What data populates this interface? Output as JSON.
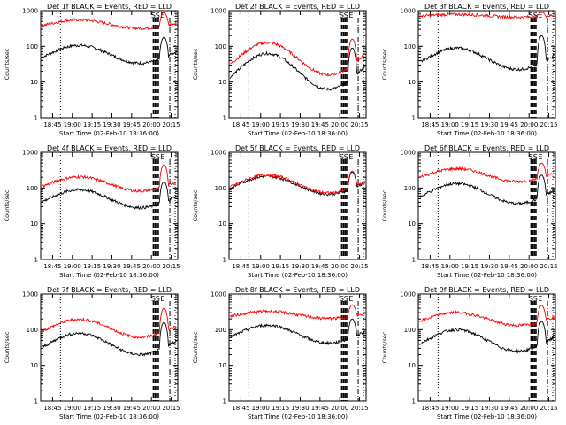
{
  "chart_data": [
    {
      "type": "line",
      "title": "Det 1f BLACK = Events, RED = LLD",
      "xlabel": "Start Time (02-Feb-10 18:36:00)",
      "ylabel": "Counts/sec",
      "x_ticks": [
        "18:45",
        "19:00",
        "19:15",
        "19:30",
        "19:45",
        "20:00",
        "20:15"
      ],
      "y_ticks": [
        "1",
        "10",
        "100",
        "1000"
      ],
      "ylim": [
        1,
        1000
      ],
      "y_scale": "log",
      "markers": [
        "S",
        "S",
        "E"
      ],
      "series": [
        {
          "color": "#000000",
          "base": 60,
          "amp": 0.25,
          "spike": 180
        },
        {
          "color": "#ff0000",
          "base": 420,
          "amp": 0.12,
          "spike": 900
        }
      ]
    },
    {
      "type": "line",
      "title": "Det 2f BLACK = Events, RED = LLD",
      "xlabel": "Start Time (02-Feb-10 18:36:00)",
      "ylabel": "Counts/sec",
      "x_ticks": [
        "18:45",
        "19:00",
        "19:15",
        "19:30",
        "19:45",
        "20:00",
        "20:15"
      ],
      "y_ticks": [
        "1",
        "10",
        "100",
        "1000"
      ],
      "ylim": [
        1,
        1000
      ],
      "y_scale": "log",
      "markers": [
        "S",
        "S",
        "E"
      ],
      "series": [
        {
          "color": "#000000",
          "base": 20,
          "amp": 0.5,
          "spike": 90
        },
        {
          "color": "#ff0000",
          "base": 45,
          "amp": 0.45,
          "spike": 160
        }
      ]
    },
    {
      "type": "line",
      "title": "Det 3f BLACK = Events, RED = LLD",
      "xlabel": "Start Time (02-Feb-10 18:36:00)",
      "ylabel": "Counts/sec",
      "x_ticks": [
        "18:45",
        "19:00",
        "19:15",
        "19:30",
        "19:45",
        "20:00",
        "20:15"
      ],
      "y_ticks": [
        "1",
        "10",
        "100",
        "1000"
      ],
      "ylim": [
        1,
        1000
      ],
      "y_scale": "log",
      "markers": [
        "S",
        "S",
        "E"
      ],
      "series": [
        {
          "color": "#000000",
          "base": 45,
          "amp": 0.3,
          "spike": 200
        },
        {
          "color": "#ff0000",
          "base": 720,
          "amp": 0.04,
          "spike": 900
        }
      ]
    },
    {
      "type": "line",
      "title": "Det 4f BLACK = Events, RED = LLD",
      "xlabel": "Start Time (02-Feb-10 18:36:00)",
      "ylabel": "Counts/sec",
      "x_ticks": [
        "18:45",
        "19:00",
        "19:15",
        "19:30",
        "19:45",
        "20:00",
        "20:15"
      ],
      "y_ticks": [
        "1",
        "10",
        "100",
        "1000"
      ],
      "ylim": [
        1,
        1000
      ],
      "y_scale": "log",
      "markers": [
        "S",
        "S",
        "E"
      ],
      "series": [
        {
          "color": "#000000",
          "base": 50,
          "amp": 0.25,
          "spike": 150
        },
        {
          "color": "#ff0000",
          "base": 130,
          "amp": 0.2,
          "spike": 450
        }
      ]
    },
    {
      "type": "line",
      "title": "Det 5f BLACK = Events, RED = LLD",
      "xlabel": "Start Time (02-Feb-10 18:36:00)",
      "ylabel": "Counts/sec",
      "x_ticks": [
        "18:45",
        "19:00",
        "19:15",
        "19:30",
        "19:45",
        "20:00",
        "20:15"
      ],
      "y_ticks": [
        "1",
        "10",
        "100",
        "1000"
      ],
      "ylim": [
        1,
        1000
      ],
      "y_scale": "log",
      "markers": [
        "S",
        "S",
        "E"
      ],
      "series": [
        {
          "color": "#000000",
          "base": 120,
          "amp": 0.25,
          "spike": 280
        },
        {
          "color": "#ff0000",
          "base": 130,
          "amp": 0.25,
          "spike": 300
        }
      ]
    },
    {
      "type": "line",
      "title": "Det 6f BLACK = Events, RED = LLD",
      "xlabel": "Start Time (02-Feb-10 18:36:00)",
      "ylabel": "Counts/sec",
      "x_ticks": [
        "18:45",
        "19:00",
        "19:15",
        "19:30",
        "19:45",
        "20:00",
        "20:15"
      ],
      "y_ticks": [
        "1",
        "10",
        "100",
        "1000"
      ],
      "ylim": [
        1,
        1000
      ],
      "y_scale": "log",
      "markers": [
        "S",
        "S",
        "E"
      ],
      "series": [
        {
          "color": "#000000",
          "base": 70,
          "amp": 0.28,
          "spike": 230
        },
        {
          "color": "#ff0000",
          "base": 230,
          "amp": 0.18,
          "spike": 500
        }
      ]
    },
    {
      "type": "line",
      "title": "Det 7f BLACK = Events, RED = LLD",
      "xlabel": "Start Time (02-Feb-10 18:36:00)",
      "ylabel": "Counts/sec",
      "x_ticks": [
        "18:45",
        "19:00",
        "19:15",
        "19:30",
        "19:45",
        "20:00",
        "20:15"
      ],
      "y_ticks": [
        "1",
        "10",
        "100",
        "1000"
      ],
      "ylim": [
        1,
        1000
      ],
      "y_scale": "log",
      "markers": [
        "S",
        "S",
        "E"
      ],
      "series": [
        {
          "color": "#000000",
          "base": 40,
          "amp": 0.3,
          "spike": 160
        },
        {
          "color": "#ff0000",
          "base": 110,
          "amp": 0.25,
          "spike": 400
        }
      ]
    },
    {
      "type": "line",
      "title": "Det 8f BLACK = Events, RED = LLD",
      "xlabel": "Start Time (02-Feb-10 18:36:00)",
      "ylabel": "Counts/sec",
      "x_ticks": [
        "18:45",
        "19:00",
        "19:15",
        "19:30",
        "19:45",
        "20:00",
        "20:15"
      ],
      "y_ticks": [
        "1",
        "10",
        "100",
        "1000"
      ],
      "ylim": [
        1,
        1000
      ],
      "y_scale": "log",
      "markers": [
        "S",
        "S",
        "E"
      ],
      "series": [
        {
          "color": "#000000",
          "base": 75,
          "amp": 0.25,
          "spike": 200
        },
        {
          "color": "#ff0000",
          "base": 260,
          "amp": 0.1,
          "spike": 500
        }
      ]
    },
    {
      "type": "line",
      "title": "Det 9f BLACK = Events, RED = LLD",
      "xlabel": "Start Time (02-Feb-10 18:36:00)",
      "ylabel": "Counts/sec",
      "x_ticks": [
        "18:45",
        "19:00",
        "19:15",
        "19:30",
        "19:45",
        "20:00",
        "20:15"
      ],
      "y_ticks": [
        "1",
        "10",
        "100",
        "1000"
      ],
      "ylim": [
        1,
        1000
      ],
      "y_scale": "log",
      "markers": [
        "S",
        "S",
        "E"
      ],
      "series": [
        {
          "color": "#000000",
          "base": 50,
          "amp": 0.3,
          "spike": 170
        },
        {
          "color": "#ff0000",
          "base": 200,
          "amp": 0.18,
          "spike": 480
        }
      ]
    }
  ]
}
